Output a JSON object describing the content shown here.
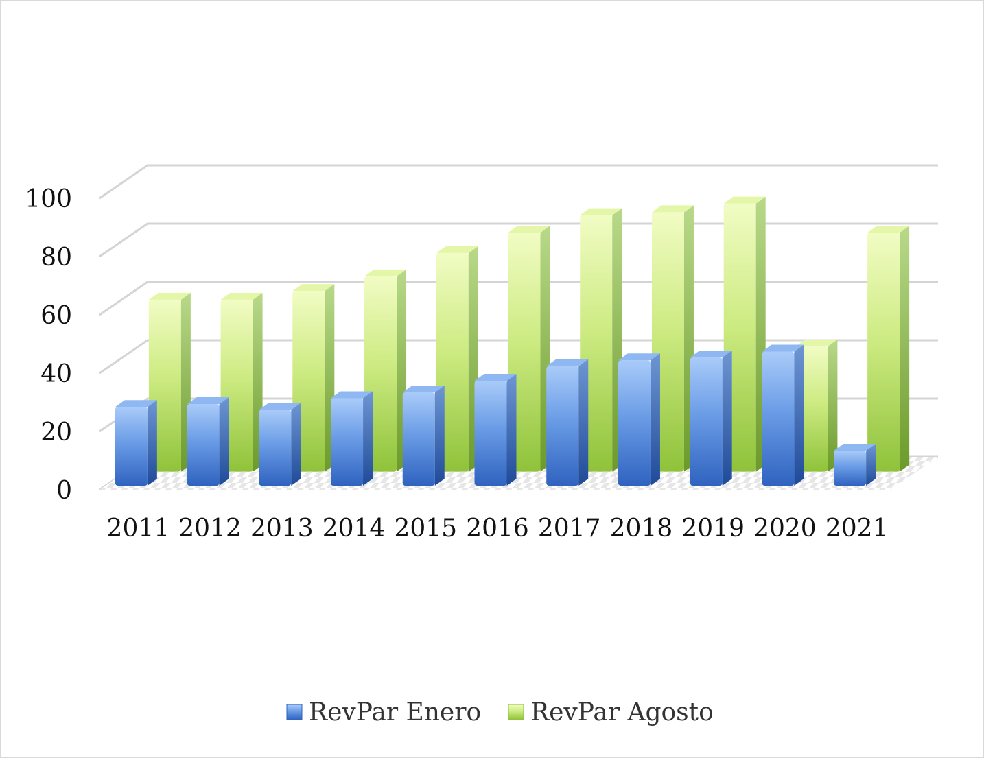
{
  "chart_data": {
    "type": "bar",
    "style": "3d-column",
    "categories": [
      "2011",
      "2012",
      "2013",
      "2014",
      "2015",
      "2016",
      "2017",
      "2018",
      "2019",
      "2020",
      "2021"
    ],
    "series": [
      {
        "name": "RevPar Enero",
        "color": "#4f81d9",
        "values": [
          27,
          28,
          26,
          30,
          32,
          36,
          41,
          43,
          44,
          46,
          12
        ]
      },
      {
        "name": "RevPar Agosto",
        "color": "#a7d64f",
        "values": [
          59,
          59,
          62,
          67,
          75,
          82,
          88,
          89,
          92,
          43,
          82
        ]
      }
    ],
    "ylim": [
      0,
      100
    ],
    "yticks": [
      "0",
      "20",
      "40",
      "60",
      "80",
      "100"
    ],
    "grid": true,
    "legend_position": "bottom",
    "title": "",
    "xlabel": "",
    "ylabel": ""
  }
}
